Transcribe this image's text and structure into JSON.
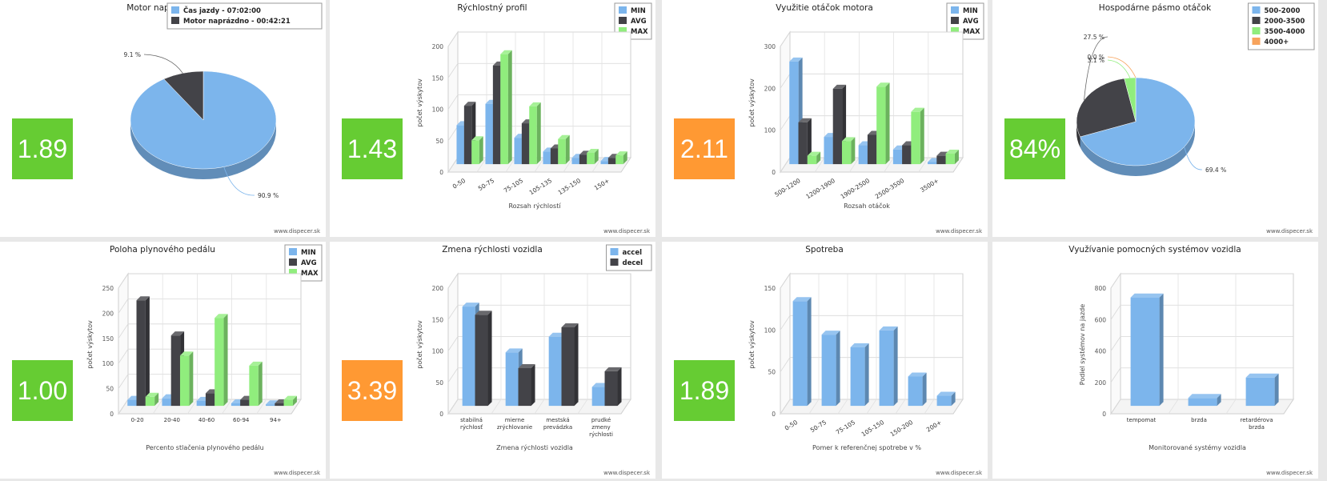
{
  "colors": {
    "min": "#7cb5ec",
    "avg": "#434348",
    "max": "#90ed7d",
    "orange": "#f7a35c",
    "score_green": "#66cc33",
    "score_orange": "#ff9933"
  },
  "watermark": "www.dispecer.sk",
  "panels": [
    {
      "score": "1.89",
      "score_color": "#66cc33"
    },
    {
      "score": "1.43",
      "score_color": "#66cc33"
    },
    {
      "score": "2.11",
      "score_color": "#ff9933"
    },
    {
      "score": "84%",
      "score_color": "#66cc33"
    },
    {
      "score": "1.00",
      "score_color": "#66cc33"
    },
    {
      "score": "3.39",
      "score_color": "#ff9933"
    },
    {
      "score": "1.89",
      "score_color": "#66cc33"
    },
    {
      "score": ""
    }
  ],
  "chart_data": [
    {
      "type": "pie",
      "title": "Motor naprázdno",
      "slices": [
        {
          "name": "Čas jazdy - 07:02:00",
          "value": 90.9,
          "label": "90.9 %",
          "color": "#7cb5ec"
        },
        {
          "name": "Motor naprázdno - 00:42:21",
          "value": 9.1,
          "label": "9.1 %",
          "color": "#434348"
        }
      ],
      "legend": "top-right"
    },
    {
      "type": "bar",
      "title": "Rýchlostný profil",
      "xlabel": "Rozsah rýchlostí",
      "ylabel": "počet výskytov",
      "ylim": [
        0,
        200
      ],
      "yticks": [
        0,
        50,
        100,
        150,
        200
      ],
      "categories": [
        "0-50",
        "50-75",
        "75-105",
        "105-135",
        "135-150",
        "150+"
      ],
      "series": [
        {
          "name": "MIN",
          "color": "#7cb5ec",
          "values": [
            62,
            96,
            42,
            20,
            10,
            5
          ]
        },
        {
          "name": "AVG",
          "color": "#434348",
          "values": [
            93,
            157,
            65,
            25,
            15,
            10
          ]
        },
        {
          "name": "MAX",
          "color": "#90ed7d",
          "values": [
            38,
            175,
            92,
            40,
            18,
            14
          ]
        }
      ],
      "legend": "top-right",
      "rotated_labels": true
    },
    {
      "type": "bar",
      "title": "Využitie otáčok motora",
      "xlabel": "Rozsah otáčok",
      "ylabel": "počet výskytov",
      "ylim": [
        0,
        300
      ],
      "yticks": [
        0,
        100,
        200,
        300
      ],
      "categories": [
        "500-1200",
        "1200-1900",
        "1900-2500",
        "2500-3500",
        "3500+"
      ],
      "series": [
        {
          "name": "MIN",
          "color": "#7cb5ec",
          "values": [
            245,
            65,
            45,
            35,
            5
          ]
        },
        {
          "name": "AVG",
          "color": "#434348",
          "values": [
            100,
            180,
            70,
            45,
            20
          ]
        },
        {
          "name": "MAX",
          "color": "#90ed7d",
          "values": [
            20,
            55,
            185,
            125,
            25
          ]
        }
      ],
      "legend": "top-right",
      "rotated_labels": true
    },
    {
      "type": "pie",
      "title": "Hospodárne pásmo otáčok",
      "slices": [
        {
          "name": "500-2000",
          "value": 69.4,
          "label": "69.4 %",
          "color": "#7cb5ec"
        },
        {
          "name": "2000-3500",
          "value": 27.5,
          "label": "27.5 %",
          "color": "#434348"
        },
        {
          "name": "3500-4000",
          "value": 3.1,
          "label": "3.1 %",
          "color": "#90ed7d"
        },
        {
          "name": "4000+",
          "value": 0.0,
          "label": "0.0 %",
          "color": "#f7a35c"
        }
      ],
      "legend": "top-right"
    },
    {
      "type": "bar",
      "title": "Poloha plynového pedálu",
      "xlabel": "Percento stlačenia plynového pedálu",
      "ylabel": "počet výskytov",
      "ylim": [
        0,
        250
      ],
      "yticks": [
        0,
        50,
        100,
        150,
        200,
        250
      ],
      "categories": [
        "0-20",
        "20-40",
        "40-60",
        "60-94",
        "94+"
      ],
      "series": [
        {
          "name": "MIN",
          "color": "#7cb5ec",
          "values": [
            12,
            15,
            10,
            5,
            3
          ]
        },
        {
          "name": "AVG",
          "color": "#434348",
          "values": [
            210,
            140,
            25,
            12,
            5
          ]
        },
        {
          "name": "MAX",
          "color": "#90ed7d",
          "values": [
            18,
            100,
            175,
            80,
            12
          ]
        }
      ],
      "legend": "top-right",
      "rotated_labels": false
    },
    {
      "type": "bar",
      "title": "Zmena rýchlosti vozidla",
      "xlabel": "Zmena rýchlosti vozidla",
      "ylabel": "počet výskytov",
      "ylim": [
        0,
        200
      ],
      "yticks": [
        0,
        50,
        100,
        150,
        200
      ],
      "categories": [
        "stabilná\nrýchlosť",
        "mierne\nzrýchlovanie",
        "mestská\nprevádzka",
        "prudké\nzmeny\nrýchlosti"
      ],
      "series": [
        {
          "name": "accel",
          "color": "#7cb5ec",
          "values": [
            158,
            85,
            110,
            30
          ]
        },
        {
          "name": "decel",
          "color": "#434348",
          "values": [
            145,
            60,
            125,
            55
          ]
        }
      ],
      "legend": "top-right",
      "rotated_labels": false
    },
    {
      "type": "bar",
      "title": "Spotreba",
      "xlabel": "Pomer k referenčnej spotrebe v %",
      "ylabel": "počet výskytov",
      "ylim": [
        0,
        150
      ],
      "yticks": [
        0,
        50,
        100,
        150
      ],
      "categories": [
        "0-50",
        "50-75",
        "75-105",
        "105-150",
        "150-200",
        "200+"
      ],
      "series": [
        {
          "name": "",
          "color": "#7cb5ec",
          "values": [
            125,
            85,
            70,
            90,
            35,
            12
          ]
        }
      ],
      "legend": "none",
      "rotated_labels": true
    },
    {
      "type": "bar",
      "title": "Využívanie pomocných systémov vozidla",
      "xlabel": "Monitorované systémy vozidla",
      "ylabel": "Podiel systémov na jazde",
      "ylim": [
        0,
        800
      ],
      "yticks": [
        0,
        200,
        400,
        600,
        800
      ],
      "categories": [
        "tempomat",
        "brzda",
        "retardérova\nbrzda"
      ],
      "series": [
        {
          "name": "",
          "color": "#7cb5ec",
          "values": [
            690,
            50,
            180
          ]
        }
      ],
      "legend": "none",
      "rotated_labels": false
    }
  ]
}
